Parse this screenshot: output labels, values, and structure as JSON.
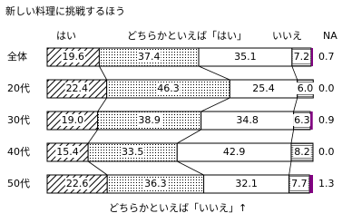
{
  "chart_data": {
    "type": "stacked-bar-100",
    "title": "新しい料理に挑戦するほう",
    "categories": [
      "全体",
      "20代",
      "30代",
      "40代",
      "50代"
    ],
    "xlim": [
      0,
      100
    ],
    "series": [
      {
        "name": "はい",
        "color": "#000000",
        "pattern": "hatch",
        "values": [
          19.6,
          22.4,
          19.0,
          15.4,
          22.6
        ],
        "value_labels": [
          "19.6",
          "22.4",
          "19.0",
          "15.4",
          "22.6"
        ]
      },
      {
        "name": "どちらかといえば「はい」",
        "color": "#000000",
        "pattern": "dots",
        "values": [
          37.4,
          46.3,
          38.9,
          33.5,
          36.3
        ],
        "value_labels": [
          "37.4",
          "46.3",
          "38.9",
          "33.5",
          "36.3"
        ]
      },
      {
        "name": "いいえ",
        "color": "#ffffff",
        "pattern": "none",
        "values": [
          35.1,
          25.4,
          34.8,
          42.9,
          32.1
        ],
        "value_labels": [
          "35.1",
          "25.4",
          "34.8",
          "42.9",
          "32.1"
        ]
      },
      {
        "name": "どちらかといえば「いいえ」↑",
        "color": "#000000",
        "pattern": "lines",
        "values": [
          7.2,
          6.0,
          6.3,
          8.2,
          7.7
        ],
        "value_labels": [
          "7.2",
          "6.0",
          "6.3",
          "8.2",
          "7.7"
        ]
      },
      {
        "name": "NA",
        "color": "#800080",
        "pattern": "none",
        "values": [
          0.7,
          0.0,
          0.9,
          0.0,
          1.3
        ],
        "value_labels": [
          "0.7",
          "0.0",
          "0.9",
          "0.0",
          "1.3"
        ]
      }
    ]
  }
}
